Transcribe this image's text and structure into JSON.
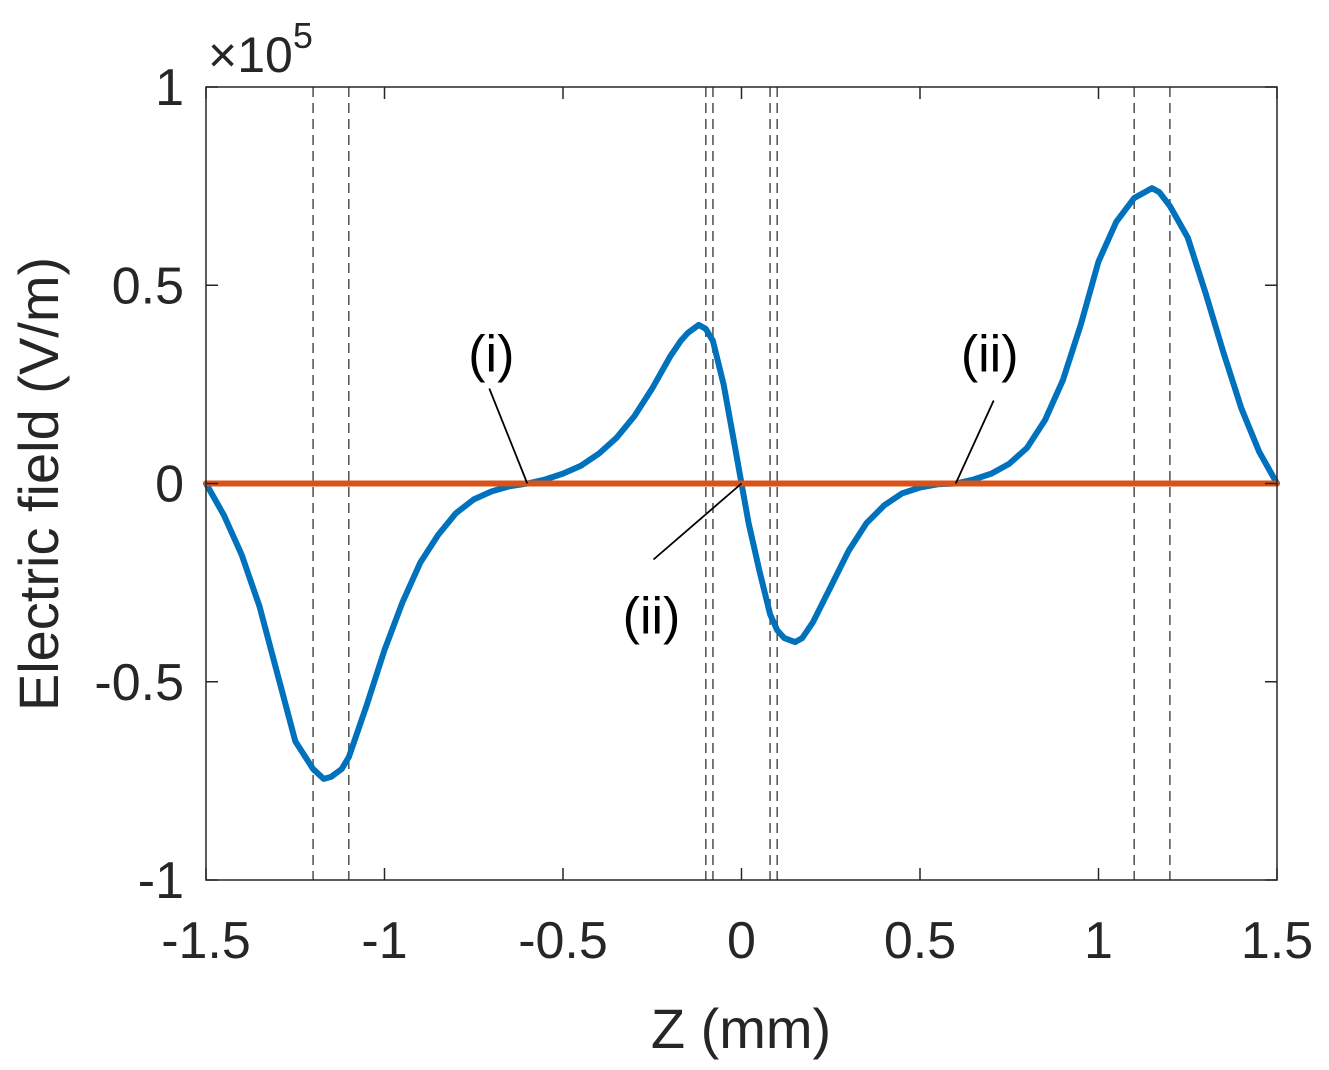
{
  "chart_data": {
    "type": "line",
    "title": "",
    "xlabel": "Z (mm)",
    "ylabel": "Electric field (V/m)",
    "xlim": [
      -1.5,
      1.5
    ],
    "ylim": [
      -1,
      1
    ],
    "y_multiplier": "×10",
    "y_multiplier_exponent": "5",
    "x_ticks": [
      "-1.5",
      "-1",
      "-0.5",
      "0",
      "0.5",
      "1",
      "1.5"
    ],
    "x_tick_values": [
      -1.5,
      -1,
      -0.5,
      0,
      0.5,
      1,
      1.5
    ],
    "y_ticks": [
      "-1",
      "-0.5",
      "0",
      "0.5",
      "1"
    ],
    "y_tick_values": [
      -1,
      -0.5,
      0,
      0.5,
      1
    ],
    "grid": false,
    "series": [
      {
        "color": "#0072BD",
        "x": [
          -1.5,
          -1.45,
          -1.4,
          -1.35,
          -1.3,
          -1.25,
          -1.2,
          -1.17,
          -1.15,
          -1.12,
          -1.1,
          -1.05,
          -1.0,
          -0.95,
          -0.9,
          -0.85,
          -0.8,
          -0.75,
          -0.7,
          -0.65,
          -0.6,
          -0.55,
          -0.5,
          -0.45,
          -0.4,
          -0.35,
          -0.3,
          -0.25,
          -0.2,
          -0.17,
          -0.15,
          -0.12,
          -0.1,
          -0.08,
          -0.05,
          -0.02,
          0.0,
          0.02,
          0.05,
          0.08,
          0.1,
          0.12,
          0.15,
          0.17,
          0.2,
          0.25,
          0.3,
          0.35,
          0.4,
          0.45,
          0.5,
          0.55,
          0.6,
          0.65,
          0.7,
          0.75,
          0.8,
          0.85,
          0.9,
          0.95,
          1.0,
          1.05,
          1.1,
          1.12,
          1.15,
          1.17,
          1.2,
          1.25,
          1.3,
          1.35,
          1.4,
          1.45,
          1.5
        ],
        "y": [
          0.0,
          -0.08,
          -0.18,
          -0.31,
          -0.48,
          -0.65,
          -0.72,
          -0.745,
          -0.74,
          -0.72,
          -0.69,
          -0.56,
          -0.42,
          -0.3,
          -0.2,
          -0.13,
          -0.075,
          -0.04,
          -0.02,
          -0.007,
          0.0,
          0.01,
          0.025,
          0.045,
          0.075,
          0.115,
          0.17,
          0.24,
          0.32,
          0.36,
          0.38,
          0.4,
          0.39,
          0.36,
          0.25,
          0.1,
          0.0,
          -0.1,
          -0.22,
          -0.33,
          -0.37,
          -0.39,
          -0.4,
          -0.39,
          -0.35,
          -0.26,
          -0.17,
          -0.1,
          -0.055,
          -0.025,
          -0.01,
          -0.002,
          0.0,
          0.01,
          0.025,
          0.05,
          0.09,
          0.16,
          0.26,
          0.4,
          0.56,
          0.66,
          0.72,
          0.73,
          0.745,
          0.735,
          0.7,
          0.62,
          0.48,
          0.33,
          0.19,
          0.08,
          0.0
        ]
      },
      {
        "color": "#D95319",
        "x": [
          -1.5,
          1.5
        ],
        "y": [
          0,
          0
        ]
      }
    ],
    "dashed_vlines": [
      -1.2,
      -1.1,
      -0.1,
      -0.08,
      0.08,
      0.1,
      1.1,
      1.2
    ],
    "annotations": [
      {
        "text": "(i)",
        "point": [
          -0.6,
          0
        ]
      },
      {
        "text": "(ii)",
        "point": [
          0.0,
          0
        ]
      },
      {
        "text": "(ii)",
        "point": [
          0.6,
          0
        ]
      }
    ]
  }
}
